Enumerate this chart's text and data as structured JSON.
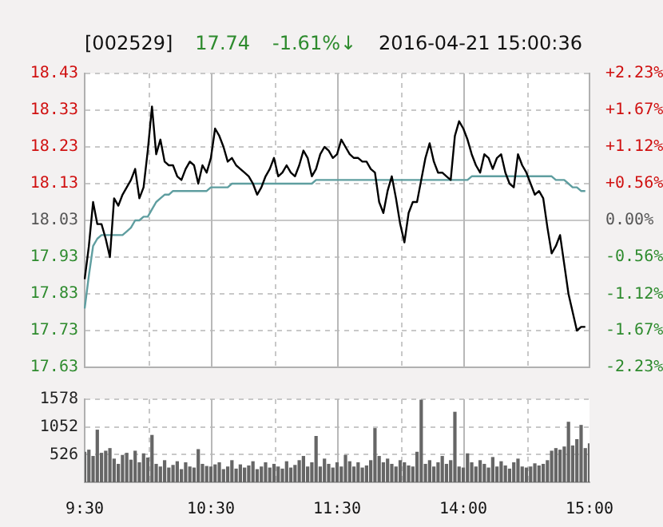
{
  "chart_data": [
    {
      "type": "line",
      "title": "[002529]",
      "annotations": [
        "17.74",
        "-1.61%↓",
        "2016-04-21 15:00:36"
      ],
      "categories": [
        null,
        null,
        null,
        null,
        null,
        null,
        null,
        null,
        null,
        null,
        null,
        null,
        null,
        null,
        null,
        null,
        null,
        null,
        null,
        null,
        null,
        null,
        null,
        null,
        null,
        null,
        null,
        null,
        null,
        null,
        null,
        null,
        null,
        null,
        null,
        null,
        null,
        null,
        null,
        null,
        null,
        null,
        null,
        null,
        null,
        null,
        null,
        null,
        null,
        null,
        null,
        null,
        null,
        null,
        null,
        null,
        null,
        null,
        null,
        null,
        null,
        null,
        null,
        null,
        null,
        null,
        null,
        null,
        null,
        null,
        null,
        null,
        null,
        null,
        null,
        null,
        null,
        null,
        null,
        null,
        null,
        null,
        null,
        null,
        null,
        null,
        null,
        null,
        null,
        null,
        null,
        null,
        null,
        null,
        null,
        null,
        null,
        null,
        null,
        null,
        null,
        null,
        null,
        null,
        null,
        null,
        null,
        null,
        null,
        null,
        null,
        null,
        null,
        null,
        null,
        null,
        null,
        null,
        null,
        null,
        null
      ],
      "series": [
        {
          "color": "#000000",
          "values": [
            17.87,
            17.96,
            18.08,
            18.02,
            18.02,
            17.98,
            17.93,
            18.09,
            18.07,
            18.1,
            18.12,
            18.14,
            18.17,
            18.09,
            18.12,
            18.22,
            18.34,
            18.21,
            18.25,
            18.19,
            18.18,
            18.18,
            18.15,
            18.14,
            18.17,
            18.19,
            18.18,
            18.13,
            18.18,
            18.16,
            18.2,
            18.28,
            18.26,
            18.23,
            18.19,
            18.2,
            18.18,
            18.17,
            18.16,
            18.15,
            18.13,
            18.1,
            18.12,
            18.15,
            18.17,
            18.2,
            18.15,
            18.16,
            18.18,
            18.16,
            18.15,
            18.18,
            18.22,
            18.2,
            18.15,
            18.17,
            18.21,
            18.23,
            18.22,
            18.2,
            18.21,
            18.25,
            18.23,
            18.21,
            18.2,
            18.2,
            18.19,
            18.19,
            18.17,
            18.16,
            18.08,
            18.05,
            18.11,
            18.15,
            18.09,
            18.02,
            17.97,
            18.05,
            18.08,
            18.08,
            18.14,
            18.2,
            18.24,
            18.19,
            18.16,
            18.16,
            18.15,
            18.14,
            18.26,
            18.3,
            18.28,
            18.25,
            18.21,
            18.18,
            18.16,
            18.21,
            18.2,
            18.17,
            18.2,
            18.21,
            18.16,
            18.13,
            18.12,
            18.21,
            18.18,
            18.16,
            18.13,
            18.1,
            18.11,
            18.09,
            18.01,
            17.94,
            17.96,
            17.99,
            17.91,
            17.83,
            17.78,
            17.73,
            17.74,
            17.74,
            null
          ]
        },
        {
          "color": "#5f9ea0",
          "values": [
            17.79,
            17.88,
            17.96,
            17.98,
            17.99,
            17.99,
            17.99,
            17.99,
            17.99,
            17.99,
            18.0,
            18.01,
            18.03,
            18.03,
            18.04,
            18.04,
            18.06,
            18.08,
            18.09,
            18.1,
            18.1,
            18.11,
            18.11,
            18.11,
            18.11,
            18.11,
            18.11,
            18.11,
            18.11,
            18.11,
            18.12,
            18.12,
            18.12,
            18.12,
            18.12,
            18.13,
            18.13,
            18.13,
            18.13,
            18.13,
            18.13,
            18.13,
            18.13,
            18.13,
            18.13,
            18.13,
            18.13,
            18.13,
            18.13,
            18.13,
            18.13,
            18.13,
            18.13,
            18.13,
            18.13,
            18.14,
            18.14,
            18.14,
            18.14,
            18.14,
            18.14,
            18.14,
            18.14,
            18.14,
            18.14,
            18.14,
            18.14,
            18.14,
            18.14,
            18.14,
            18.14,
            18.14,
            18.14,
            18.14,
            18.14,
            18.14,
            18.14,
            18.14,
            18.14,
            18.14,
            18.14,
            18.14,
            18.14,
            18.14,
            18.14,
            18.14,
            18.14,
            18.14,
            18.14,
            18.14,
            18.14,
            18.14,
            18.15,
            18.15,
            18.15,
            18.15,
            18.15,
            18.15,
            18.15,
            18.15,
            18.15,
            18.15,
            18.15,
            18.15,
            18.15,
            18.15,
            18.15,
            18.15,
            18.15,
            18.15,
            18.15,
            18.15,
            18.14,
            18.14,
            18.14,
            18.13,
            18.12,
            18.12,
            18.11,
            18.11,
            null
          ]
        }
      ],
      "ylim": [
        17.63,
        18.43
      ],
      "yticks": [
        17.63,
        17.73,
        17.83,
        17.93,
        18.03,
        18.13,
        18.23,
        18.33,
        18.43
      ],
      "y2lim": [
        -2.23,
        2.23
      ],
      "y2ticks": [
        {
          "value": -2.23,
          "label": "-2.23%"
        },
        {
          "value": -1.67,
          "label": "-1.67%"
        },
        {
          "value": -1.12,
          "label": "-1.12%"
        },
        {
          "value": -0.56,
          "label": "-0.56%"
        },
        {
          "value": 0,
          "label": "0.00%"
        },
        {
          "value": 0.56,
          "label": "+0.56%"
        },
        {
          "value": 1.12,
          "label": "+1.12%"
        },
        {
          "value": 1.67,
          "label": "+1.67%"
        },
        {
          "value": 2.23,
          "label": "+2.23%"
        }
      ],
      "grid": true,
      "marker": "none",
      "tick_labels": "y"
    },
    {
      "type": "bar",
      "color": "#666666",
      "categories": [
        "9:30",
        null,
        null,
        null,
        null,
        null,
        null,
        null,
        null,
        null,
        null,
        null,
        null,
        null,
        null,
        null,
        null,
        null,
        null,
        null,
        null,
        null,
        null,
        null,
        null,
        null,
        null,
        null,
        null,
        null,
        "10:30",
        null,
        null,
        null,
        null,
        null,
        null,
        null,
        null,
        null,
        null,
        null,
        null,
        null,
        null,
        null,
        null,
        null,
        null,
        null,
        null,
        null,
        null,
        null,
        null,
        null,
        null,
        null,
        null,
        null,
        "11:30",
        null,
        null,
        null,
        null,
        null,
        null,
        null,
        null,
        null,
        null,
        null,
        null,
        null,
        null,
        null,
        null,
        null,
        null,
        null,
        null,
        null,
        null,
        null,
        null,
        null,
        null,
        null,
        null,
        null,
        "14:00",
        null,
        null,
        null,
        null,
        null,
        null,
        null,
        null,
        null,
        null,
        null,
        null,
        null,
        null,
        null,
        null,
        null,
        null,
        null,
        null,
        null,
        null,
        null,
        null,
        null,
        null,
        null,
        null,
        null,
        "15:00"
      ],
      "values": [
        580,
        620,
        500,
        1000,
        560,
        600,
        650,
        450,
        350,
        520,
        560,
        430,
        600,
        380,
        550,
        470,
        900,
        350,
        300,
        420,
        280,
        330,
        400,
        250,
        380,
        300,
        280,
        630,
        350,
        310,
        300,
        340,
        380,
        250,
        300,
        420,
        260,
        340,
        280,
        320,
        400,
        250,
        300,
        380,
        280,
        350,
        300,
        260,
        400,
        280,
        330,
        420,
        500,
        300,
        380,
        880,
        300,
        450,
        350,
        280,
        380,
        300,
        520,
        400,
        300,
        380,
        280,
        320,
        420,
        1030,
        500,
        380,
        450,
        350,
        300,
        420,
        380,
        320,
        300,
        580,
        1570,
        350,
        420,
        300,
        380,
        500,
        350,
        420,
        1340,
        300,
        280,
        550,
        380,
        300,
        420,
        350,
        280,
        480,
        300,
        400,
        320,
        260,
        380,
        450,
        300,
        280,
        300,
        360,
        320,
        350,
        420,
        600,
        650,
        620,
        680,
        1150,
        700,
        820,
        1090,
        650,
        740
      ],
      "ylim": [
        0,
        1578
      ],
      "yticks": [
        526,
        1052,
        1578
      ],
      "grid": true
    }
  ]
}
